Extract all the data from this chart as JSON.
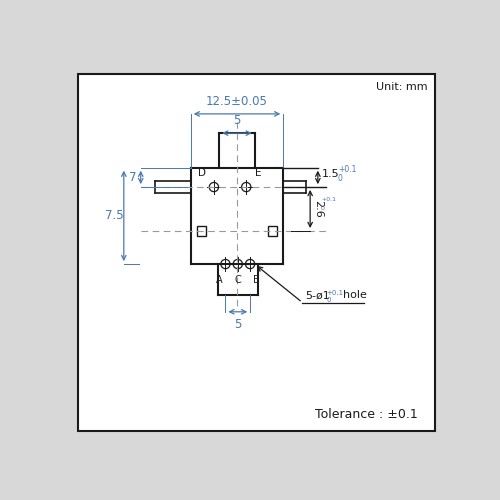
{
  "bg_color": "#d8d8d8",
  "box_color": "#ffffff",
  "line_color": "#1a1a1a",
  "dim_color": "#4a78b0",
  "text_color": "#1a1a1a",
  "unit_text": "Unit: mm",
  "tolerance_text": "Tolerance : ±0.1",
  "dim_12_5": "12.5±0.05",
  "dim_5_top": "5",
  "dim_5_bot": "5",
  "dim_7": "7",
  "dim_7_5": "7.5",
  "dim_1_5": "1.5",
  "dim_2_6": "2.6",
  "dim_hole": "5-ø1",
  "dim_hole_tol": "+0.1",
  "dim_hole_tol2": "0",
  "label_A": "A",
  "label_C": "C",
  "label_B": "B",
  "label_D": "D",
  "label_E": "E"
}
